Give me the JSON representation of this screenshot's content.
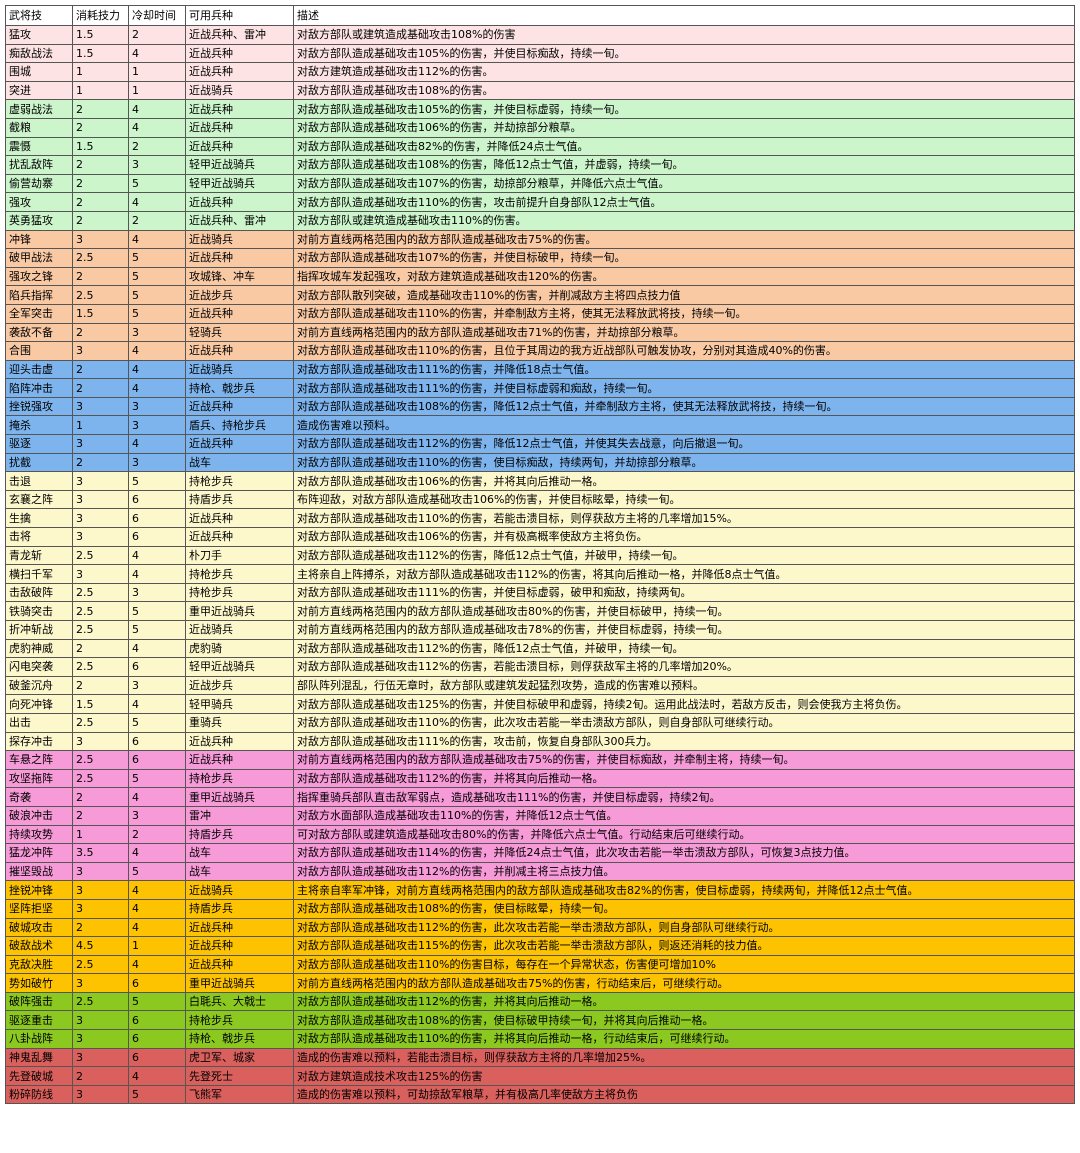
{
  "header": [
    "武将技",
    "消耗技力",
    "冷却时间",
    "可用兵种",
    "描述"
  ],
  "groups": [
    {
      "color": "#fde3e3",
      "rows": [
        [
          "猛攻",
          "1.5",
          "2",
          "近战兵种、雷冲",
          "对敌方部队或建筑造成基础攻击108%的伤害"
        ],
        [
          "痴敌战法",
          "1.5",
          "4",
          "近战兵种",
          "对敌方部队造成基础攻击105%的伤害，并使目标痴敌，持续一旬。"
        ],
        [
          "围城",
          "1",
          "1",
          "近战兵种",
          "对敌方建筑造成基础攻击112%的伤害。"
        ],
        [
          "突进",
          "1",
          "1",
          "近战骑兵",
          "对敌方部队造成基础攻击108%的伤害。"
        ]
      ]
    },
    {
      "color": "#ccf5cc",
      "rows": [
        [
          "虚弱战法",
          "2",
          "4",
          "近战兵种",
          "对敌方部队造成基础攻击105%的伤害，并使目标虚弱，持续一旬。"
        ],
        [
          "截粮",
          "2",
          "4",
          "近战兵种",
          "对敌方部队造成基础攻击106%的伤害，并劫掠部分粮草。"
        ],
        [
          "震慑",
          "1.5",
          "2",
          "近战兵种",
          "对敌方部队造成基础攻击82%的伤害，并降低24点士气值。"
        ],
        [
          "扰乱敌阵",
          "2",
          "3",
          "轻甲近战骑兵",
          "对敌方部队造成基础攻击108%的伤害，降低12点士气值，并虚弱，持续一旬。"
        ],
        [
          "偷营劫寨",
          "2",
          "5",
          "轻甲近战骑兵",
          "对敌方部队造成基础攻击107%的伤害，劫掠部分粮草，并降低六点士气值。"
        ],
        [
          "强攻",
          "2",
          "4",
          "近战兵种",
          "对敌方部队造成基础攻击110%的伤害，攻击前提升自身部队12点士气值。"
        ],
        [
          "英勇猛攻",
          "2",
          "2",
          "近战兵种、雷冲",
          "对敌方部队或建筑造成基础攻击110%的伤害。"
        ]
      ]
    },
    {
      "color": "#f9c9a4",
      "rows": [
        [
          "冲锋",
          "3",
          "4",
          "近战骑兵",
          "对前方直线两格范围内的敌方部队造成基础攻击75%的伤害。"
        ],
        [
          "破甲战法",
          "2.5",
          "5",
          "近战兵种",
          "对敌方部队造成基础攻击107%的伤害，并使目标破甲，持续一旬。"
        ],
        [
          "强攻之锋",
          "2",
          "5",
          "攻城锋、冲车",
          "指挥攻城车发起强攻，对敌方建筑造成基础攻击120%的伤害。"
        ],
        [
          "陷兵指挥",
          "2.5",
          "5",
          "近战步兵",
          "对敌方部队散列突破，造成基础攻击110%的伤害，并削减敌方主将四点技力值"
        ],
        [
          "全军突击",
          "1.5",
          "5",
          "近战兵种",
          "对敌方部队造成基础攻击110%的伤害，并牵制敌方主将，使其无法释放武将技，持续一旬。"
        ],
        [
          "袭敌不备",
          "2",
          "3",
          "轻骑兵",
          "对前方直线两格范围内的敌方部队造成基础攻击71%的伤害，并劫掠部分粮草。"
        ],
        [
          "合围",
          "3",
          "4",
          "近战兵种",
          "对敌方部队造成基础攻击110%的伤害，且位于其周边的我方近战部队可触发协攻，分别对其造成40%的伤害。"
        ]
      ]
    },
    {
      "color": "#7db4ee",
      "rows": [
        [
          "迎头击虚",
          "2",
          "4",
          "近战骑兵",
          "对敌方部队造成基础攻击111%的伤害，并降低18点士气值。"
        ],
        [
          "陷阵冲击",
          "2",
          "4",
          "持枪、戟步兵",
          "对敌方部队造成基础攻击111%的伤害，并使目标虚弱和痴敌，持续一旬。"
        ],
        [
          "挫锐强攻",
          "3",
          "3",
          "近战兵种",
          "对敌方部队造成基础攻击108%的伤害，降低12点士气值，并牵制敌方主将，使其无法释放武将技，持续一旬。"
        ],
        [
          "掩杀",
          "1",
          "3",
          "盾兵、持枪步兵",
          "造成伤害难以预料。"
        ],
        [
          "驱逐",
          "3",
          "4",
          "近战兵种",
          "对敌方部队造成基础攻击112%的伤害，降低12点士气值，并使其失去战意，向后撤退一旬。"
        ],
        [
          "扰截",
          "2",
          "3",
          "战车",
          "对敌方部队造成基础攻击110%的伤害，使目标痴敌，持续两旬，并劫掠部分粮草。"
        ]
      ]
    },
    {
      "color": "#fdf7cc",
      "rows": [
        [
          "击退",
          "3",
          "5",
          "持枪步兵",
          "对敌方部队造成基础攻击106%的伤害，并将其向后推动一格。"
        ],
        [
          "玄襄之阵",
          "3",
          "6",
          "持盾步兵",
          "布阵迎敌，对敌方部队造成基础攻击106%的伤害，并使目标眩晕，持续一旬。"
        ],
        [
          "生擒",
          "3",
          "6",
          "近战兵种",
          "对敌方部队造成基础攻击110%的伤害，若能击溃目标，则俘获敌方主将的几率增加15%。"
        ],
        [
          "击将",
          "3",
          "6",
          "近战兵种",
          "对敌方部队造成基础攻击106%的伤害，并有极高概率使敌方主将负伤。"
        ],
        [
          "青龙斩",
          "2.5",
          "4",
          "朴刀手",
          "对敌方部队造成基础攻击112%的伤害，降低12点士气值，并破甲，持续一旬。"
        ],
        [
          "横扫千军",
          "3",
          "4",
          "持枪步兵",
          "主将亲自上阵搏杀，对敌方部队造成基础攻击112%的伤害，将其向后推动一格，并降低8点士气值。"
        ],
        [
          "击敌破阵",
          "2.5",
          "3",
          "持枪步兵",
          "对敌方部队造成基础攻击111%的伤害，并使目标虚弱，破甲和痴敌，持续两旬。"
        ],
        [
          "铁骑突击",
          "2.5",
          "5",
          "重甲近战骑兵",
          "对前方直线两格范围内的敌方部队造成基础攻击80%的伤害，并使目标破甲，持续一旬。"
        ],
        [
          "折冲斩战",
          "2.5",
          "5",
          "近战骑兵",
          "对前方直线两格范围内的敌方部队造成基础攻击78%的伤害，并使目标虚弱，持续一旬。"
        ],
        [
          "虎豹神威",
          "2",
          "4",
          "虎豹骑",
          "对敌方部队造成基础攻击112%的伤害，降低12点士气值，并破甲，持续一旬。"
        ],
        [
          "闪电突袭",
          "2.5",
          "6",
          "轻甲近战骑兵",
          "对敌方部队造成基础攻击112%的伤害，若能击溃目标，则俘获敌军主将的几率增加20%。"
        ],
        [
          "破釜沉舟",
          "2",
          "3",
          "近战步兵",
          "部队阵列混乱，行伍无章时，敌方部队或建筑发起猛烈攻势，造成的伤害难以预料。"
        ],
        [
          "向死冲锋",
          "1.5",
          "4",
          "轻甲骑兵",
          "对敌方部队造成基础攻击125%的伤害，并使目标破甲和虚弱，持续2旬。运用此战法时，若敌方反击，则会使我方主将负伤。"
        ],
        [
          "出击",
          "2.5",
          "5",
          "重骑兵",
          "对敌方部队造成基础攻击110%的伤害，此次攻击若能一举击溃敌方部队，则自身部队可继续行动。"
        ],
        [
          "探存冲击",
          "3",
          "6",
          "近战兵种",
          "对敌方部队造成基础攻击111%的伤害，攻击前，恢复自身部队300兵力。"
        ]
      ]
    },
    {
      "color": "#f79ad8",
      "rows": [
        [
          "车悬之阵",
          "2.5",
          "6",
          "近战兵种",
          "对前方直线两格范围内的敌方部队造成基础攻击75%的伤害，并使目标痴敌，并牵制主将，持续一旬。"
        ],
        [
          "攻坚拖阵",
          "2.5",
          "5",
          "持枪步兵",
          "对敌方部队造成基础攻击112%的伤害，并将其向后推动一格。"
        ],
        [
          "奇袭",
          "2",
          "4",
          "重甲近战骑兵",
          "指挥重骑兵部队直击敌军弱点，造成基础攻击111%的伤害，并使目标虚弱，持续2旬。"
        ],
        [
          "破浪冲击",
          "2",
          "3",
          "雷冲",
          "对敌方水面部队造成基础攻击110%的伤害，并降低12点士气值。"
        ],
        [
          "持续攻势",
          "1",
          "2",
          "持盾步兵",
          "可对敌方部队或建筑造成基础攻击80%的伤害，并降低六点士气值。行动结束后可继续行动。"
        ],
        [
          "猛龙冲阵",
          "3.5",
          "4",
          "战车",
          "对敌方部队造成基础攻击114%的伤害，并降低24点士气值，此次攻击若能一举击溃敌方部队，可恢复3点技力值。"
        ],
        [
          "摧坚毁战",
          "3",
          "5",
          "战车",
          "对敌方部队造成基础攻击112%的伤害，并削减主将三点技力值。"
        ]
      ]
    },
    {
      "color": "#fdc300",
      "rows": [
        [
          "挫锐冲锋",
          "3",
          "4",
          "近战骑兵",
          "主将亲自率军冲锋，对前方直线两格范围内的敌方部队造成基础攻击82%的伤害，使目标虚弱，持续两旬，并降低12点士气值。"
        ],
        [
          "坚阵拒坚",
          "3",
          "4",
          "持盾步兵",
          "对敌方部队造成基础攻击108%的伤害，使目标眩晕，持续一旬。"
        ],
        [
          "破城攻击",
          "2",
          "4",
          "近战兵种",
          "对敌方部队造成基础攻击112%的伤害，此次攻击若能一举击溃敌方部队，则自身部队可继续行动。"
        ],
        [
          "破敌战术",
          "4.5",
          "1",
          "近战兵种",
          "对敌方部队造成基础攻击115%的伤害，此次攻击若能一举击溃敌方部队，则返还消耗的技力值。"
        ],
        [
          "克敌决胜",
          "2.5",
          "4",
          "近战兵种",
          "对敌方部队造成基础攻击110%的伤害目标，每存在一个异常状态，伤害便可增加10%"
        ],
        [
          "势如破竹",
          "3",
          "6",
          "重甲近战骑兵",
          "对前方直线两格范围内的敌方部队造成基础攻击75%的伤害，行动结束后，可继续行动。"
        ]
      ]
    },
    {
      "color": "#8bc820",
      "rows": [
        [
          "破阵强击",
          "2.5",
          "5",
          "白毦兵、大戟士",
          "对敌方部队造成基础攻击112%的伤害，并将其向后推动一格。"
        ],
        [
          "驱逐重击",
          "3",
          "6",
          "持枪步兵",
          "对敌方部队造成基础攻击108%的伤害，使目标破甲持续一旬，并将其向后推动一格。"
        ],
        [
          "八卦战阵",
          "3",
          "6",
          "持枪、戟步兵",
          "对敌方部队造成基础攻击110%的伤害，并将其向后推动一格，行动结束后，可继续行动。"
        ]
      ]
    },
    {
      "color": "#d9605c",
      "rows": [
        [
          "神鬼乱舞",
          "3",
          "6",
          "虎卫军、城家",
          "造成的伤害难以预料，若能击溃目标，则俘获敌方主将的几率增加25%。"
        ],
        [
          "先登破城",
          "2",
          "4",
          "先登死士",
          "对敌方建筑造成技术攻击125%的伤害"
        ],
        [
          "粉碎防线",
          "3",
          "5",
          "飞熊军",
          "造成的伤害难以预料，可劫掠敌军粮草，并有极高几率使敌方主将负伤"
        ]
      ]
    }
  ]
}
